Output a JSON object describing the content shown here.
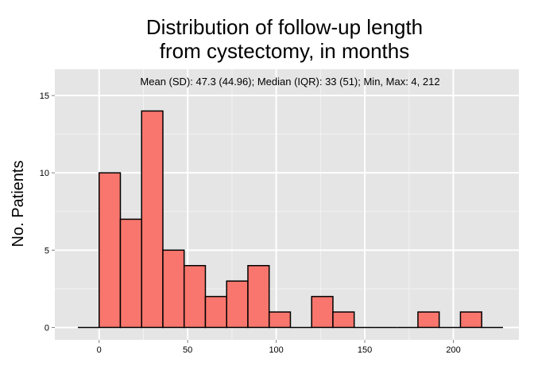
{
  "chart_data": {
    "type": "bar",
    "title_lines": [
      "Distribution of follow-up length",
      "from cystectomy, in months"
    ],
    "annotation": "Mean (SD): 47.3 (44.96); Median (IQR): 33 (51); Min, Max: 4, 212",
    "xlabel": "",
    "ylabel": "No. Patients",
    "xlim": [
      -25,
      237
    ],
    "ylim": [
      -0.8,
      16.7
    ],
    "xticks": [
      0,
      50,
      100,
      150,
      200
    ],
    "yticks": [
      0,
      5,
      10,
      15
    ],
    "bin_width": 12,
    "bin_start": -12,
    "counts": [
      0,
      10,
      7,
      14,
      5,
      4,
      2,
      3,
      4,
      1,
      0,
      2,
      1,
      0,
      0,
      0,
      1,
      0,
      1,
      0
    ],
    "grid": true,
    "colors": {
      "panel_bg": "#e5e5e5",
      "grid_major": "#ffffff",
      "grid_minor": "#f2f2f2",
      "bar_fill": "#f8766d",
      "bar_stroke": "#000000",
      "tick_color": "#7f7f7f"
    }
  }
}
